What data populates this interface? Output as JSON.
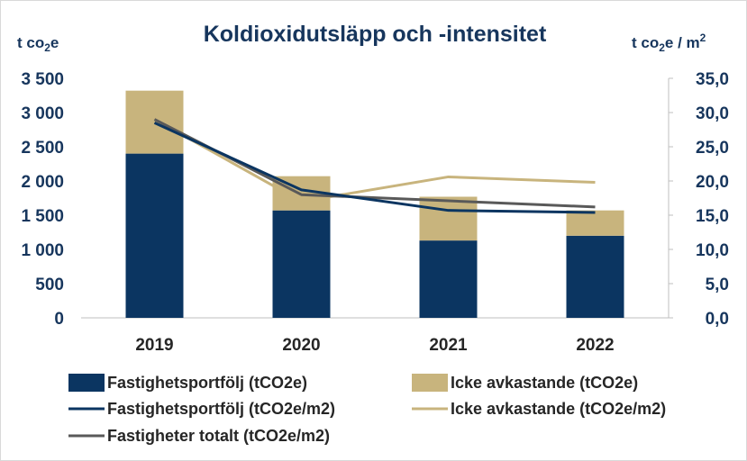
{
  "chart_data": {
    "type": "bar",
    "title": "Koldioxidutsläpp och -intensitet",
    "categories": [
      "2019",
      "2020",
      "2021",
      "2022"
    ],
    "y_left": {
      "unit_main": "t co",
      "unit_sub": "2",
      "unit_tail": "e",
      "ylim": [
        0,
        3500
      ],
      "ticks": [
        0,
        500,
        1000,
        1500,
        2000,
        2500,
        3000,
        3500
      ],
      "tick_labels": [
        "0",
        "500",
        "1 000",
        "1 500",
        "2 000",
        "2 500",
        "3 000",
        "3 500"
      ]
    },
    "y_right": {
      "unit_main": "t co",
      "unit_sub": "2",
      "unit_tail": "e / m",
      "unit_sup": "2",
      "ylim": [
        0,
        35
      ],
      "ticks": [
        0,
        5,
        10,
        15,
        20,
        25,
        30,
        35
      ],
      "tick_labels": [
        "0,0",
        "5,0",
        "10,0",
        "15,0",
        "20,0",
        "25,0",
        "30,0",
        "35,0"
      ]
    },
    "bar_series": [
      {
        "name": "Fastighetsportfölj (tCO2e)",
        "color": "#0b3561",
        "values": [
          2400,
          1570,
          1130,
          1200
        ]
      },
      {
        "name": "Icke avkastande (tCO2e)",
        "color": "#c8b47d",
        "values": [
          920,
          500,
          640,
          370
        ]
      }
    ],
    "line_series": [
      {
        "name": "Fastighetsportfölj (tCO2e/m2)",
        "color": "#0b3561",
        "values": [
          28.5,
          18.7,
          15.7,
          15.4
        ]
      },
      {
        "name": "Icke avkastande (tCO2e/m2)",
        "color": "#c8b47d",
        "values": [
          29.0,
          17.0,
          20.6,
          19.8
        ]
      },
      {
        "name": "Fastigheter totalt (tCO2e/m2)",
        "color": "#595959",
        "values": [
          29.0,
          18.0,
          17.1,
          16.2
        ]
      }
    ]
  }
}
